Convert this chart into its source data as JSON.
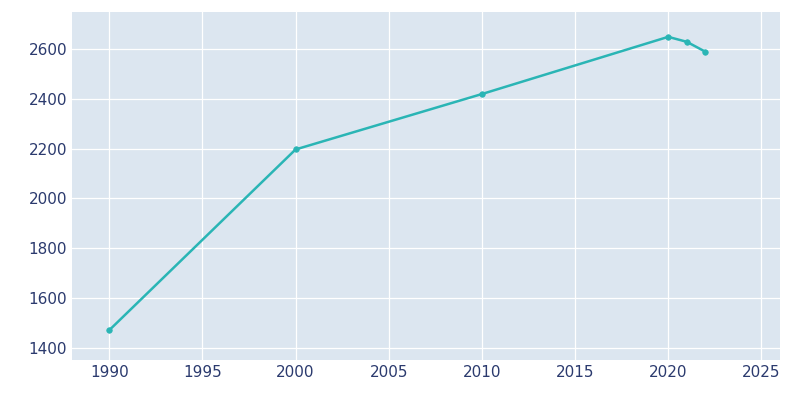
{
  "years": [
    1990,
    2000,
    2010,
    2020,
    2021,
    2022
  ],
  "population": [
    1470,
    2197,
    2420,
    2650,
    2630,
    2590
  ],
  "line_color": "#2ab5b5",
  "marker_color": "#2ab5b5",
  "background_color": "#ffffff",
  "axes_facecolor": "#dce6f0",
  "grid_color": "#ffffff",
  "tick_color": "#2b3a6e",
  "xlim": [
    1988,
    2026
  ],
  "ylim": [
    1350,
    2750
  ],
  "xticks": [
    1990,
    1995,
    2000,
    2005,
    2010,
    2015,
    2020,
    2025
  ],
  "yticks": [
    1400,
    1600,
    1800,
    2000,
    2200,
    2400,
    2600
  ],
  "line_width": 1.8,
  "marker_size": 4
}
